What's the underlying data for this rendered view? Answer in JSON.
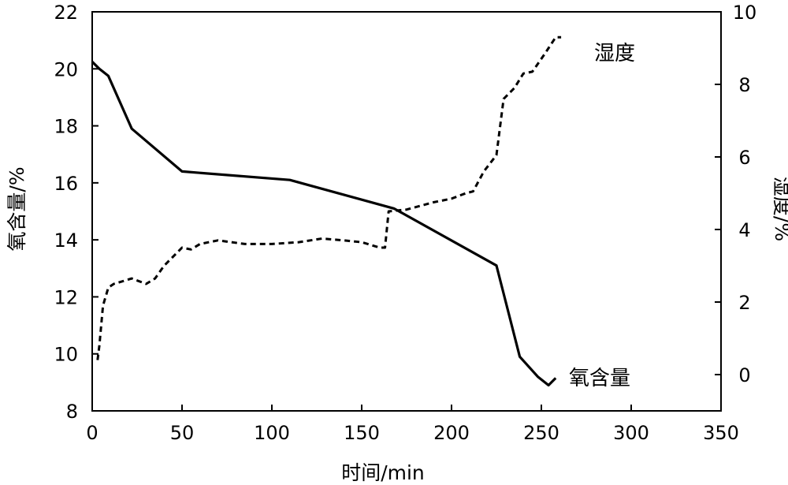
{
  "chart_data": {
    "type": "line",
    "xlabel": "时间/min",
    "ylabel_left": "氧含量/%",
    "ylabel_right": "湿度/%",
    "xlim": [
      0,
      350
    ],
    "ylim_left": [
      8,
      22
    ],
    "ylim_right": [
      -1,
      10
    ],
    "xticks": [
      0,
      50,
      100,
      150,
      200,
      250,
      300,
      350
    ],
    "yticks_left": [
      8,
      10,
      12,
      14,
      16,
      18,
      20,
      22
    ],
    "yticks_right": [
      0,
      2,
      4,
      6,
      8,
      10
    ],
    "grid": false,
    "series": [
      {
        "name": "氧含量",
        "axis": "left",
        "style": "solid",
        "color": "#000000",
        "x": [
          0,
          4,
          9,
          22,
          50,
          110,
          168,
          225,
          238,
          248,
          254,
          258
        ],
        "y": [
          20.25,
          20.0,
          19.75,
          17.9,
          16.4,
          16.1,
          15.1,
          13.1,
          9.9,
          9.2,
          8.9,
          9.15
        ]
      },
      {
        "name": "湿度",
        "axis": "right",
        "style": "dashed",
        "color": "#000000",
        "x": [
          3,
          4,
          6,
          9,
          12,
          22,
          30,
          35,
          40,
          50,
          55,
          60,
          70,
          85,
          100,
          115,
          128,
          140,
          150,
          160,
          163,
          165,
          175,
          190,
          200,
          208,
          212,
          218,
          225,
          229,
          235,
          240,
          245,
          252,
          258,
          261
        ],
        "y": [
          0.4,
          0.8,
          1.9,
          2.4,
          2.5,
          2.65,
          2.5,
          2.65,
          3.0,
          3.5,
          3.45,
          3.6,
          3.7,
          3.6,
          3.6,
          3.65,
          3.75,
          3.7,
          3.65,
          3.5,
          3.5,
          4.5,
          4.55,
          4.75,
          4.85,
          5.0,
          5.05,
          5.6,
          6.05,
          7.6,
          7.9,
          8.3,
          8.35,
          8.85,
          9.3,
          9.3
        ]
      }
    ]
  }
}
